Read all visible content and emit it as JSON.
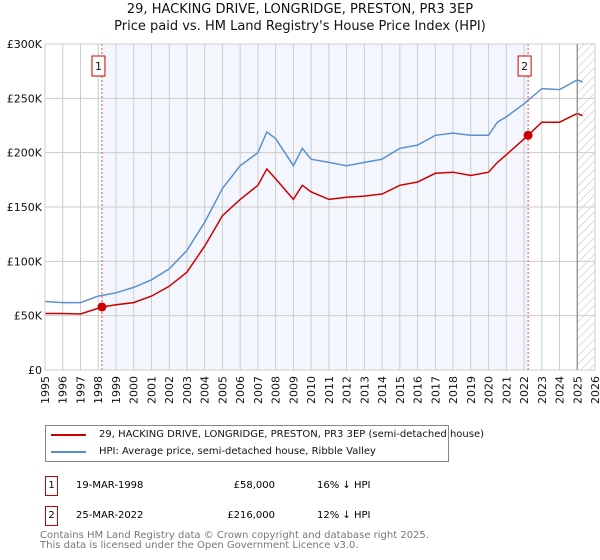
{
  "chart_data": {
    "type": "line",
    "title": "29, HACKING DRIVE, LONGRIDGE, PRESTON, PR3 3EP",
    "subtitle": "Price paid vs. HM Land Registry's House Price Index (HPI)",
    "xlim": [
      1995,
      2026
    ],
    "ylim": [
      0,
      300000
    ],
    "x_ticks": [
      "1995",
      "1996",
      "1997",
      "1998",
      "1999",
      "2000",
      "2001",
      "2002",
      "2003",
      "2004",
      "2005",
      "2006",
      "2007",
      "2008",
      "2009",
      "2010",
      "2011",
      "2012",
      "2013",
      "2014",
      "2015",
      "2016",
      "2017",
      "2018",
      "2019",
      "2020",
      "2021",
      "2022",
      "2023",
      "2024",
      "2025",
      "2026"
    ],
    "y_ticks": [
      {
        "v": 0,
        "label": "£0"
      },
      {
        "v": 50000,
        "label": "£50K"
      },
      {
        "v": 100000,
        "label": "£100K"
      },
      {
        "v": 150000,
        "label": "£150K"
      },
      {
        "v": 200000,
        "label": "£200K"
      },
      {
        "v": 250000,
        "label": "£250K"
      },
      {
        "v": 300000,
        "label": "£300K"
      }
    ],
    "grid": true,
    "shaded_range": [
      1998.21,
      2022.23
    ],
    "future_hatch_from": 2025.0,
    "series": [
      {
        "name": "29, HACKING DRIVE, LONGRIDGE, PRESTON, PR3 3EP (semi-detached house)",
        "color": "#cc0000",
        "x": [
          1995,
          1996,
          1997,
          1998.21,
          1999,
          2000,
          2001,
          2002,
          2003,
          2004,
          2005,
          2006,
          2007,
          2007.5,
          2008,
          2009,
          2009.5,
          2010,
          2011,
          2012,
          2013,
          2014,
          2015,
          2016,
          2017,
          2018,
          2019,
          2020,
          2020.5,
          2021,
          2022.23,
          2023,
          2024,
          2025,
          2025.3
        ],
        "y": [
          52000,
          52000,
          51500,
          58000,
          60000,
          62000,
          68000,
          77000,
          90000,
          114000,
          142000,
          157000,
          170000,
          185000,
          176000,
          157000,
          170000,
          164000,
          157000,
          159000,
          160000,
          162000,
          170000,
          173000,
          181000,
          182000,
          179000,
          182000,
          191000,
          198000,
          216000,
          228000,
          228000,
          236000,
          234000
        ]
      },
      {
        "name": "HPI: Average price, semi-detached house, Ribble Valley",
        "color": "#5b8fd0",
        "x": [
          1995,
          1996,
          1997,
          1998,
          1999,
          2000,
          2001,
          2002,
          2003,
          2004,
          2005,
          2006,
          2007,
          2007.5,
          2008,
          2009,
          2009.5,
          2010,
          2011,
          2012,
          2013,
          2014,
          2015,
          2016,
          2017,
          2018,
          2019,
          2020,
          2020.5,
          2021,
          2022,
          2023,
          2024,
          2025,
          2025.3
        ],
        "y": [
          63000,
          62000,
          62000,
          68000,
          71000,
          76000,
          83000,
          93000,
          110000,
          136000,
          167000,
          188000,
          200000,
          219000,
          213000,
          188000,
          204000,
          194000,
          191000,
          188000,
          191000,
          194000,
          204000,
          207000,
          216000,
          218000,
          216000,
          216000,
          228000,
          233000,
          245000,
          259000,
          258000,
          267000,
          265000
        ]
      }
    ],
    "annotations": [
      {
        "label": "1",
        "x": 1998.21,
        "y": 58000
      },
      {
        "label": "2",
        "x": 2022.23,
        "y": 216000
      }
    ]
  },
  "legend": {
    "red": "29, HACKING DRIVE, LONGRIDGE, PRESTON, PR3 3EP (semi-detached house)",
    "blue": "HPI: Average price, semi-detached house, Ribble Valley"
  },
  "sales": [
    {
      "num": "1",
      "date": "19-MAR-1998",
      "price": "£58,000",
      "hpi": "16% ↓ HPI"
    },
    {
      "num": "2",
      "date": "25-MAR-2022",
      "price": "£216,000",
      "hpi": "12% ↓ HPI"
    }
  ],
  "footer": {
    "line1": "Contains HM Land Registry data © Crown copyright and database right 2025.",
    "line2": "This data is licensed under the Open Government Licence v3.0."
  }
}
